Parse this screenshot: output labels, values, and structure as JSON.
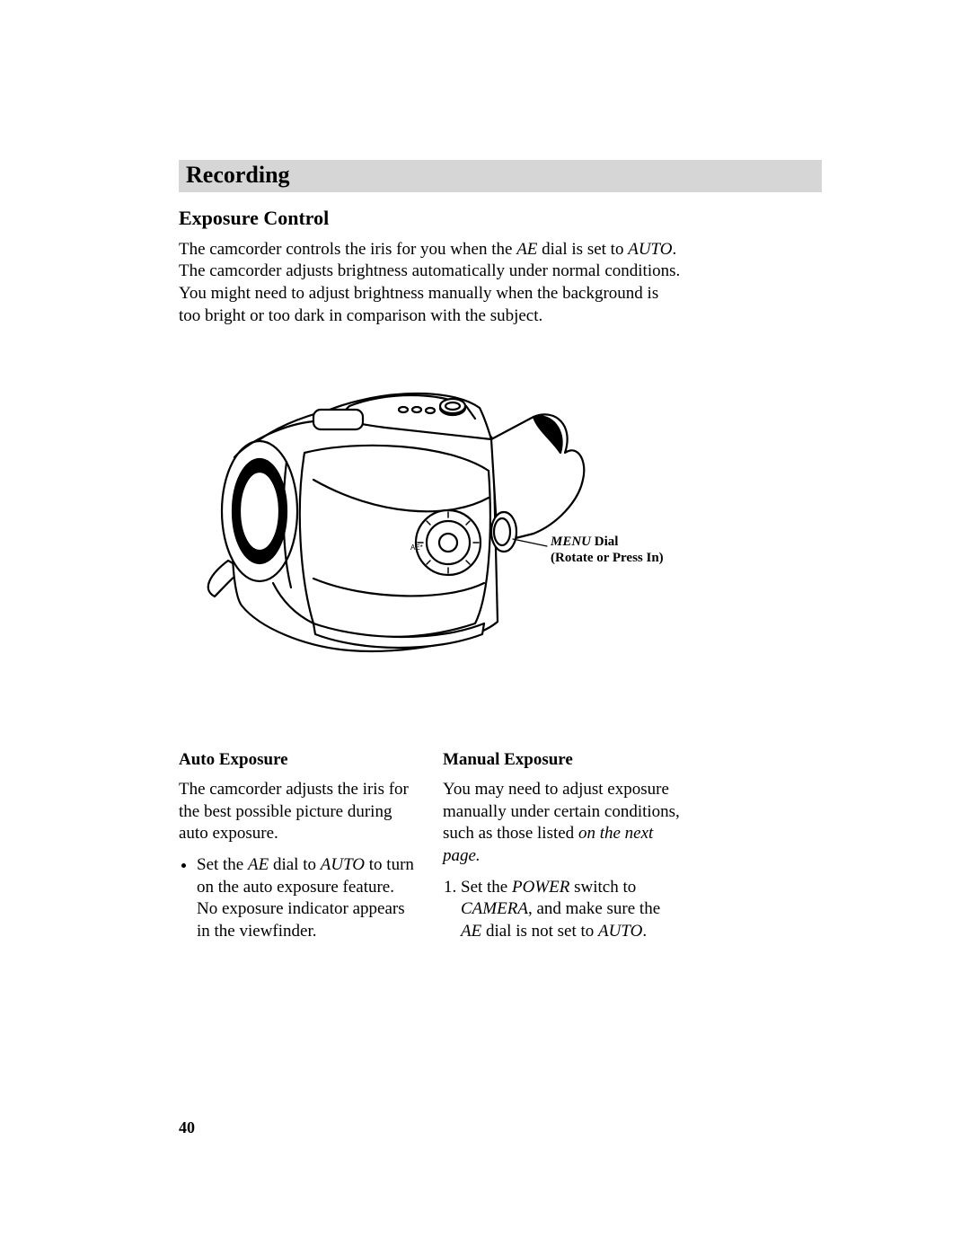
{
  "page": {
    "section_header": "Recording",
    "subheading": "Exposure Control",
    "intro_html": "The camcorder controls the iris for you when the <span class=\"ital\">AE</span> dial is set to <span class=\"ital\">AUTO</span>. The camcorder adjusts brightness automatically under normal condi­tions.  You might need to adjust brightness manually when the back­ground is too bright or too dark in comparison with the subject.",
    "figure": {
      "label_line1_ital": "MENU",
      "label_line1_rest": " Dial",
      "label_line2": "(Rotate or Press In)"
    },
    "columns": {
      "left": {
        "heading": "Auto Exposure",
        "para": "The camcorder adjusts the iris for the best possible picture during auto exposure.",
        "bullet_html": "Set the <span class=\"ital\">AE</span> dial to <span class=\"ital\">AUTO</span> to turn on the auto exposure feature. No exposure indicator appears in the viewfinder."
      },
      "right": {
        "heading": "Manual Exposure",
        "para_html": "You may need to adjust exposure manually under certain conditions, such as those listed <span class=\"ital\">on the next page.</span>",
        "num1_html": "Set the <span class=\"ital\">POWER</span> switch to <span class=\"ital\">CAMERA</span>, and make sure the <span class=\"ital\">AE</span> dial is not set to <span class=\"ital\">AUTO</span>."
      }
    },
    "page_number": "40"
  },
  "style": {
    "background": "#ffffff",
    "text_color": "#000000",
    "header_bg": "#d6d6d6",
    "figure_stroke": "#000000",
    "figure_fill": "#ffffff"
  }
}
